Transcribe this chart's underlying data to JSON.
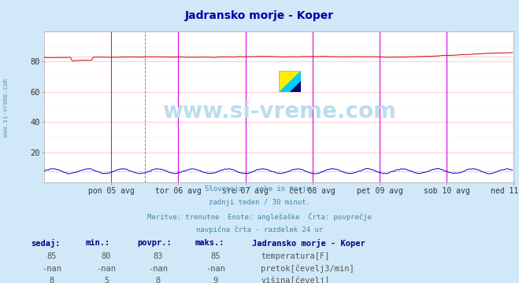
{
  "title": "Jadransko morje - Koper",
  "title_color": "#0000aa",
  "bg_color": "#d0e8f8",
  "plot_bg_color": "#ffffff",
  "grid_h_color": "#ffcccc",
  "grid_v_color": "#ffaaff",
  "x_labels": [
    "pon 05 avg",
    "tor 06 avg",
    "sre 07 avg",
    "čet 08 avg",
    "pet 09 avg",
    "sob 10 avg",
    "ned 11 avg"
  ],
  "x_ticks_idx": [
    48,
    96,
    144,
    192,
    240,
    288,
    336
  ],
  "x_total": 336,
  "y_min": 0,
  "y_max": 100,
  "y_ticks": [
    20,
    40,
    60,
    80
  ],
  "temp_color": "#cc0000",
  "temp_avg_color": "#ff8888",
  "height_color": "#0000cc",
  "height_avg_color": "#8888ff",
  "vline_color": "#dd00dd",
  "vline_gray_color": "#888888",
  "watermark_text": "www.si-vreme.com",
  "watermark_color": "#bbddee",
  "subtitle_lines": [
    "Slovenija / reke in morje.",
    "zadnji teden / 30 minut.",
    "Meritve: trenutne  Enote: anglešaške  Črta: povprečje",
    "navpična črta - razdelek 24 ur"
  ],
  "subtitle_color": "#4488aa",
  "table_header_color": "#000088",
  "table_data_color": "#555555",
  "sidebar_text": "www.si-vreme.com",
  "sidebar_color": "#6699bb"
}
